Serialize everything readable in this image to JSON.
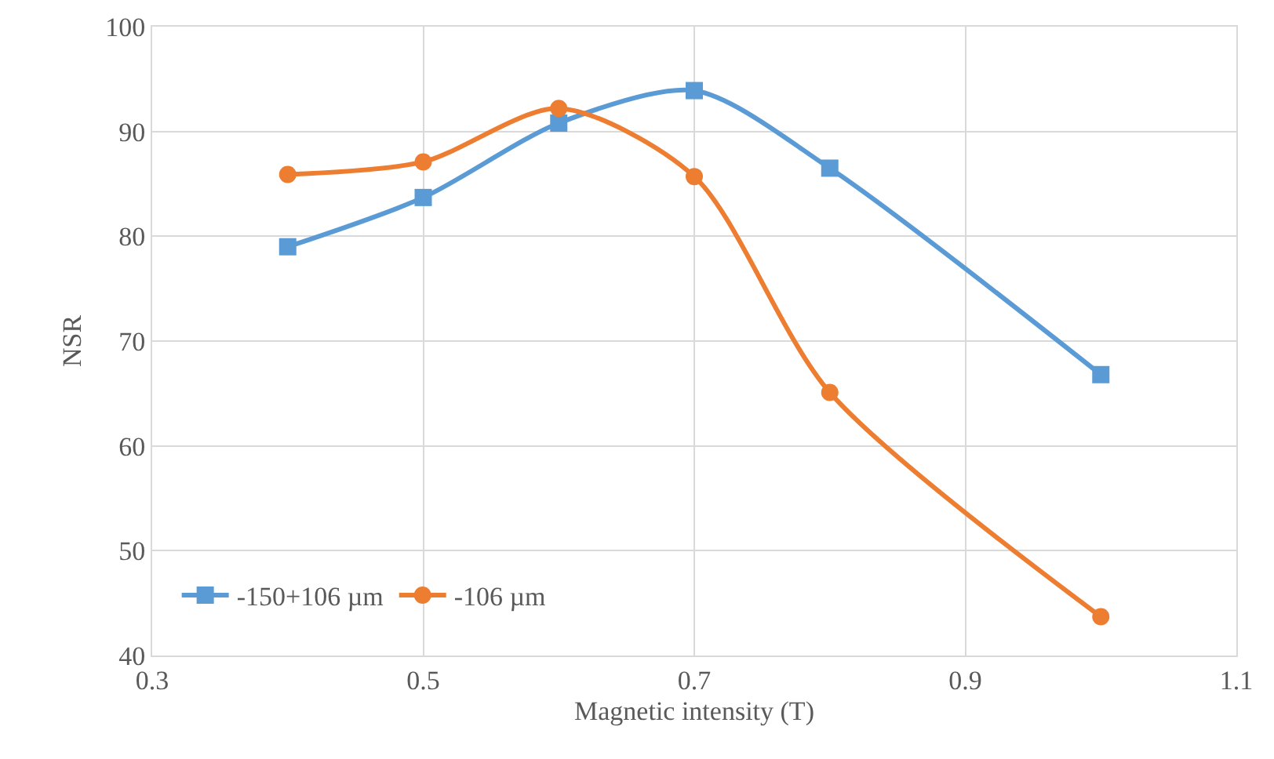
{
  "chart_data": {
    "type": "line",
    "xlabel": "Magnetic intensity (T)",
    "ylabel": "NSR",
    "x": [
      0.4,
      0.5,
      0.6,
      0.7,
      0.8,
      1.0
    ],
    "series": [
      {
        "name": "-150+106 µm",
        "color": "#5b9bd5",
        "marker": "square",
        "values": [
          79,
          83.7,
          90.8,
          93.9,
          86.5,
          66.8
        ]
      },
      {
        "name": "-106 µm",
        "color": "#ed7d31",
        "marker": "circle",
        "values": [
          85.9,
          87.1,
          92.2,
          85.7,
          65.1,
          43.7
        ]
      }
    ],
    "xlim": [
      0.3,
      1.1
    ],
    "xticks": [
      0.3,
      0.5,
      0.7,
      0.9,
      1.1
    ],
    "ylim": [
      40,
      100
    ],
    "yticks": [
      40,
      50,
      60,
      70,
      80,
      90,
      100
    ],
    "grid": true,
    "legend": "bottom left",
    "line_style": "solid"
  }
}
